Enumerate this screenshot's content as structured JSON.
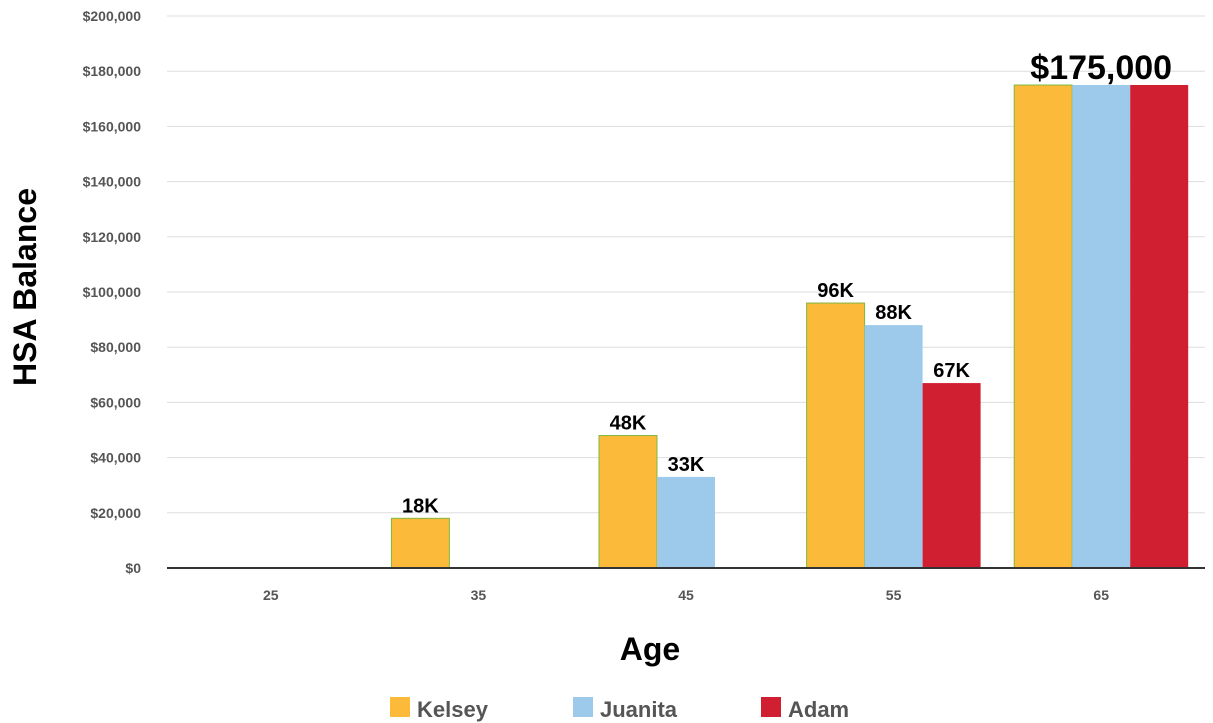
{
  "chart_data": {
    "type": "bar",
    "categories": [
      "25",
      "35",
      "45",
      "55",
      "65"
    ],
    "series": [
      {
        "name": "Kelsey",
        "color": "#FBBA3A",
        "values": [
          0,
          18000,
          48000,
          96000,
          175000
        ],
        "labels": [
          "",
          "18K",
          "48K",
          "96K",
          ""
        ]
      },
      {
        "name": "Juanita",
        "color": "#9DCAEB",
        "values": [
          0,
          0,
          33000,
          88000,
          175000
        ],
        "labels": [
          "",
          "",
          "33K",
          "88K",
          ""
        ]
      },
      {
        "name": "Adam",
        "color": "#D01F31",
        "values": [
          0,
          0,
          0,
          67000,
          175000
        ],
        "labels": [
          "",
          "",
          "",
          "67K",
          ""
        ]
      }
    ],
    "group_label": {
      "category": "65",
      "text": "$175,000"
    },
    "yticks": [
      "$0",
      "$20,000",
      "$40,000",
      "$60,000",
      "$80,000",
      "$100,000",
      "$120,000",
      "$140,000",
      "$160,000",
      "$180,000",
      "$200,000"
    ],
    "ylim": [
      0,
      200000
    ],
    "xlabel": "Age",
    "ylabel": "HSA Balance",
    "grid": true,
    "legend_position": "bottom"
  }
}
